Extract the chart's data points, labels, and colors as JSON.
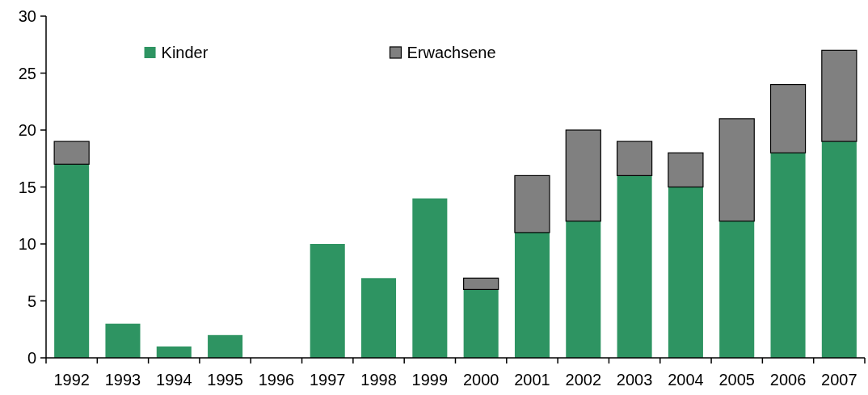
{
  "chart_data": {
    "type": "bar",
    "stacked": true,
    "categories": [
      "1992",
      "1993",
      "1994",
      "1995",
      "1996",
      "1997",
      "1998",
      "1999",
      "2000",
      "2001",
      "2002",
      "2003",
      "2004",
      "2005",
      "2006",
      "2007"
    ],
    "series": [
      {
        "name": "Kinder",
        "color": "#2e9462",
        "values": [
          17,
          3,
          1,
          2,
          0,
          10,
          7,
          14,
          6,
          11,
          12,
          16,
          15,
          12,
          18,
          19
        ]
      },
      {
        "name": "Erwachsene",
        "color": "#808080",
        "values": [
          2,
          0,
          0,
          0,
          0,
          0,
          0,
          0,
          1,
          5,
          8,
          3,
          3,
          9,
          6,
          8
        ]
      }
    ],
    "ylim": [
      0,
      30
    ],
    "yticks": [
      0,
      5,
      10,
      15,
      20,
      25,
      30
    ],
    "legend": "top"
  }
}
